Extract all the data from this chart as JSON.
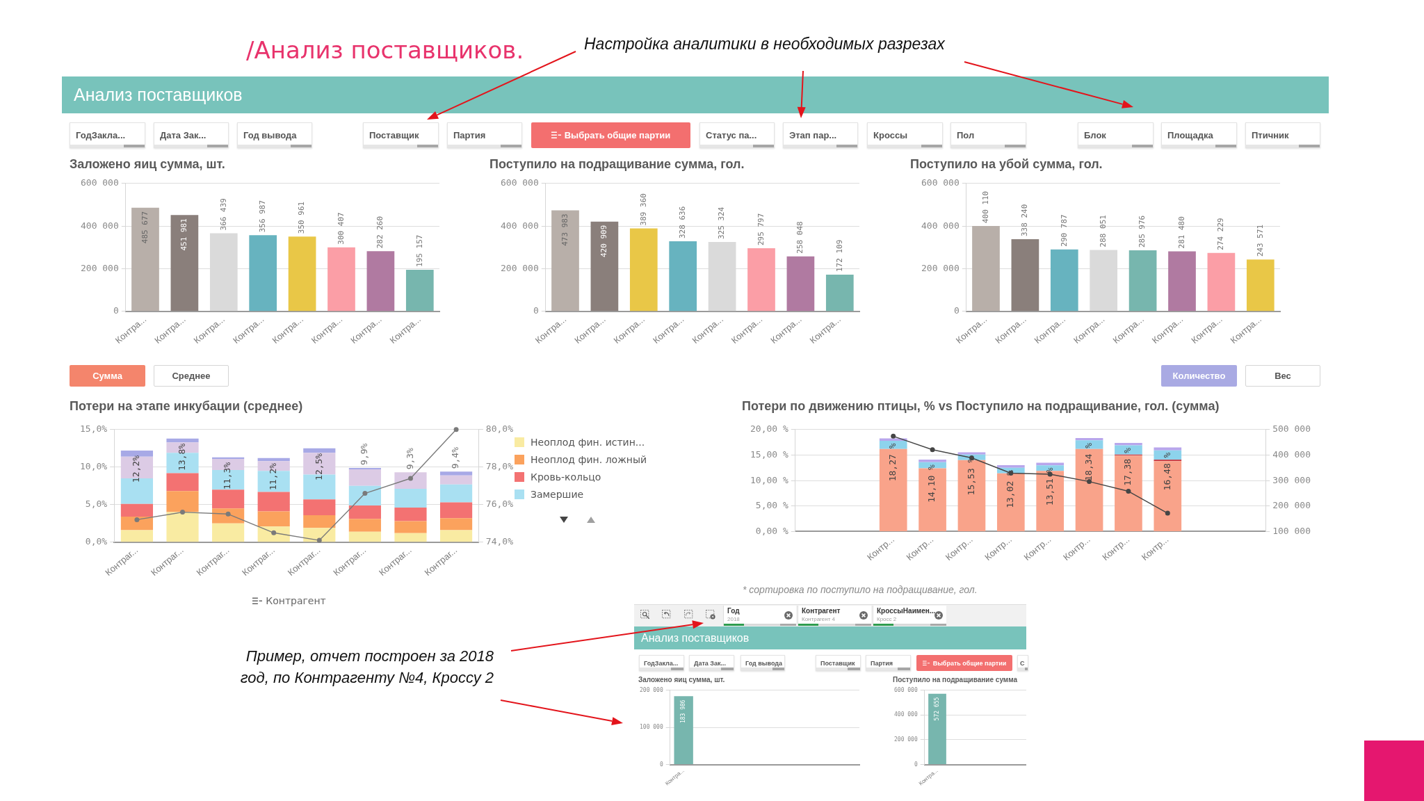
{
  "chart_data": [
    {
      "type": "other",
      "title": "/Анализ поставщиков.",
      "annotations": [
        "Настройка аналитики в необходимых разрезах"
      ]
    },
    {
      "type": "other",
      "title": "Анализ поставщиков",
      "annotations": [
        "ГодЗакла...",
        "Дата Зак...",
        "Год вывода",
        "Поставщик",
        "Партия",
        "Выбрать общие партии",
        "Статус па...",
        "Этап пар...",
        "Кроссы",
        "Пол",
        "Блок",
        "Площадка",
        "Птичник"
      ]
    },
    {
      "type": "bar",
      "title": "Заложено яиц сумма, шт.",
      "categories": [
        "Контра...",
        "Контра...",
        "Контра...",
        "Контра...",
        "Контра...",
        "Контра...",
        "Контра...",
        "Контра..."
      ],
      "values": [
        485677,
        451981,
        366439,
        356987,
        350961,
        300407,
        282260,
        195157
      ],
      "colors": [
        "#b8afa9",
        "#8a7f7b",
        "#dadada",
        "#67b3bf",
        "#e9c747",
        "#fb9ea6",
        "#b07aa1",
        "#77b6ae"
      ],
      "value_labels": [
        "485 677",
        "451 981",
        "366 439",
        "356 987",
        "350 961",
        "300 407",
        "282 260",
        "195 157"
      ],
      "ylim": [
        0,
        600000
      ],
      "yticks": [
        {
          "value": 0,
          "label": "0"
        },
        {
          "value": 200000,
          "label": "200 000"
        },
        {
          "value": 400000,
          "label": "400 000"
        },
        {
          "value": 600000,
          "label": "600 000"
        }
      ],
      "grid": "y"
    },
    {
      "type": "bar",
      "title": "Поступило на подращивание сумма, гол.",
      "categories": [
        "Контра...",
        "Контра...",
        "Контра...",
        "Контра...",
        "Контра...",
        "Контра...",
        "Контра...",
        "Контра..."
      ],
      "values": [
        473983,
        420909,
        389360,
        328636,
        325324,
        295797,
        258048,
        172109
      ],
      "colors": [
        "#b8afa9",
        "#8a7f7b",
        "#e9c747",
        "#67b3bf",
        "#dadada",
        "#fb9ea6",
        "#b07aa1",
        "#77b6ae"
      ],
      "value_labels": [
        "473 983",
        "420 909",
        "389 360",
        "328 636",
        "325 324",
        "295 797",
        "258 048",
        "172 109"
      ],
      "ylim": [
        0,
        600000
      ],
      "yticks": [
        {
          "value": 0,
          "label": "0"
        },
        {
          "value": 200000,
          "label": "200 000"
        },
        {
          "value": 400000,
          "label": "400 000"
        },
        {
          "value": 600000,
          "label": "600 000"
        }
      ],
      "grid": "y"
    },
    {
      "type": "bar",
      "title": "Поступило на убой сумма, гол.",
      "categories": [
        "Контра...",
        "Контра...",
        "Контра...",
        "Контра...",
        "Контра...",
        "Контра...",
        "Контра...",
        "Контра..."
      ],
      "values": [
        400110,
        338240,
        290787,
        288051,
        285976,
        281480,
        274229,
        243571
      ],
      "colors": [
        "#b8afa9",
        "#8a7f7b",
        "#67b3bf",
        "#dadada",
        "#77b6ae",
        "#b07aa1",
        "#fb9ea6",
        "#e9c747"
      ],
      "value_labels": [
        "400 110",
        "338 240",
        "290 787",
        "288 051",
        "285 976",
        "281 480",
        "274 229",
        "243 571"
      ],
      "ylim": [
        0,
        600000
      ],
      "yticks": [
        {
          "value": 0,
          "label": "0"
        },
        {
          "value": 200000,
          "label": "200 000"
        },
        {
          "value": 400000,
          "label": "400 000"
        },
        {
          "value": 600000,
          "label": "600 000"
        }
      ],
      "grid": "y"
    },
    {
      "type": "other",
      "annotations": [
        "Сумма",
        "Среднее",
        "Количество",
        "Вес"
      ]
    },
    {
      "type": "bar",
      "title": "Потери на этапе инкубации (среднее)",
      "xlabel": "Контрагент",
      "categories": [
        "Контраг...",
        "Контраг...",
        "Контраг...",
        "Контраг...",
        "Контраг...",
        "Контраг...",
        "Контраг...",
        "Контраг..."
      ],
      "stacked": true,
      "series": [
        {
          "name": "Неоплод фин. истин...",
          "color": "#f9eba2",
          "values": [
            1.6,
            4.0,
            2.5,
            2.1,
            1.9,
            1.4,
            1.2,
            1.6
          ]
        },
        {
          "name": "Неоплод фин. ложный",
          "color": "#fba25d",
          "values": [
            1.8,
            2.8,
            2.0,
            2.0,
            1.7,
            1.7,
            1.6,
            1.6
          ]
        },
        {
          "name": "Кровь-кольцо",
          "color": "#f37272",
          "values": [
            1.7,
            2.4,
            2.5,
            2.6,
            2.1,
            1.8,
            1.8,
            2.1
          ]
        },
        {
          "name": "Замершие",
          "color": "#a9e0f2",
          "values": [
            3.4,
            2.7,
            2.6,
            2.8,
            3.3,
            2.6,
            2.5,
            2.4
          ]
        },
        {
          "color": "#dccbe5",
          "values": [
            2.9,
            1.4,
            1.5,
            1.3,
            2.9,
            2.2,
            2.2,
            1.2
          ]
        },
        {
          "color": "#a7a9e6",
          "values": [
            0.8,
            0.5,
            0.2,
            0.4,
            0.6,
            0.2,
            null,
            0.5
          ]
        },
        {
          "type": "line",
          "axis": "y2",
          "color": "#7a7a7a",
          "marker": "circle",
          "values": [
            75.2,
            75.6,
            75.5,
            74.5,
            74.1,
            76.6,
            77.4,
            80.0
          ]
        }
      ],
      "totals": [
        "12,2%",
        "13,8%",
        "11,3%",
        "11,2%",
        "12,5%",
        "9,9%",
        "9,3%",
        "9,4%"
      ],
      "ylim": [
        0,
        15
      ],
      "yticks": [
        {
          "value": 0,
          "label": "0,0%"
        },
        {
          "value": 5,
          "label": "5,0%"
        },
        {
          "value": 10,
          "label": "10,0%"
        },
        {
          "value": 15,
          "label": "15,0%"
        }
      ],
      "y2lim": [
        74,
        80
      ],
      "y2ticks": [
        {
          "value": 74,
          "label": "74,0%"
        },
        {
          "value": 76,
          "label": "76,0%"
        },
        {
          "value": 78,
          "label": "78,0%"
        },
        {
          "value": 80,
          "label": "80,0%"
        }
      ],
      "grid": "y",
      "legend": "right"
    },
    {
      "type": "bar",
      "title": "Потери по движению птицы, % vs Поступило на подращивание, гол. (сумма)",
      "categories": [
        null,
        null,
        "Контр...",
        "Контр...",
        "Контр...",
        "Контр...",
        "Контр...",
        "Контр...",
        "Контр...",
        "Контр...",
        null,
        null
      ],
      "stacked": true,
      "series": [
        {
          "color": "#f9a38a",
          "values": [
            null,
            null,
            16.2,
            12.4,
            14.0,
            11.4,
            11.9,
            16.2,
            14.9,
            13.8,
            null,
            null
          ]
        },
        {
          "color": "#c9444c",
          "values": [
            null,
            null,
            null,
            null,
            null,
            null,
            null,
            null,
            0.2,
            0.3,
            null,
            null
          ]
        },
        {
          "color": "#8dd3ec",
          "values": [
            null,
            null,
            1.6,
            1.2,
            1.1,
            1.1,
            1.1,
            1.7,
            1.8,
            1.8,
            null,
            null
          ]
        },
        {
          "color": "#b8a6ec",
          "values": [
            null,
            null,
            0.47,
            0.5,
            0.43,
            0.52,
            0.51,
            0.44,
            0.48,
            0.58,
            null,
            null
          ]
        },
        {
          "type": "line",
          "axis": "y2",
          "color": "#454545",
          "marker": "circle",
          "values": [
            null,
            null,
            474000,
            421000,
            389000,
            329000,
            325000,
            296000,
            258000,
            172000,
            null,
            null
          ]
        }
      ],
      "totals": [
        null,
        null,
        "18,27 %",
        "14,10 %",
        "15,53 %",
        "13,02 %",
        "13,51 %",
        "18,34 %",
        "17,38 %",
        "16,48 %",
        null,
        null
      ],
      "ylim": [
        0,
        20
      ],
      "yticks": [
        {
          "value": 0,
          "label": "0,00 %"
        },
        {
          "value": 5,
          "label": "5,00 %"
        },
        {
          "value": 10,
          "label": "10,00 %"
        },
        {
          "value": 15,
          "label": "15,00 %"
        },
        {
          "value": 20,
          "label": "20,00 %"
        }
      ],
      "y2lim": [
        100000,
        500000
      ],
      "y2ticks": [
        {
          "value": 100000,
          "label": "100 000"
        },
        {
          "value": 200000,
          "label": "200 000"
        },
        {
          "value": 300000,
          "label": "300 000"
        },
        {
          "value": 400000,
          "label": "400 000"
        },
        {
          "value": 500000,
          "label": "500 000"
        }
      ],
      "grid": "y",
      "annotations": [
        "* сортировка по поступило на подращивание, гол."
      ]
    },
    {
      "type": "other",
      "annotations": [
        "Пример, отчет построен за 2018 год, по Контрагенту №4, Кроссу 2"
      ]
    },
    {
      "type": "other",
      "title": "Анализ поставщиков",
      "annotations": [
        "Год",
        "2018",
        "Контрагент",
        "Контрагент 4",
        "КроссыНаимен...",
        "Кросс 2",
        "ГодЗакла...",
        "Дата Зак...",
        "Год вывода",
        "Поставщик",
        "Партия",
        "Выбрать общие партии",
        "С"
      ]
    },
    {
      "type": "bar",
      "title": "Заложено яиц сумма, шт.",
      "categories": [
        "Контра...",
        null,
        null,
        null,
        null,
        null,
        null
      ],
      "values": [
        183986,
        null,
        null,
        null,
        null,
        null,
        null
      ],
      "color": "#77b6ae",
      "value_labels": [
        "183 986",
        null,
        null,
        null,
        null,
        null,
        null
      ],
      "ylim": [
        0,
        200000
      ],
      "yticks": [
        {
          "value": 0,
          "label": "0"
        },
        {
          "value": 100000,
          "label": "100 000"
        },
        {
          "value": 200000,
          "label": "200 000"
        }
      ],
      "grid": "y"
    },
    {
      "type": "bar",
      "title": "Поступило на подращивание сумма",
      "categories": [
        "Контра...",
        null,
        null,
        null
      ],
      "values": [
        572655,
        null,
        null,
        null
      ],
      "color": "#77b6ae",
      "value_labels": [
        "572 655",
        null,
        null,
        null
      ],
      "ylim": [
        0,
        600000
      ],
      "yticks": [
        {
          "value": 0,
          "label": "0"
        },
        {
          "value": 200000,
          "label": "200 000"
        },
        {
          "value": 400000,
          "label": "400 000"
        },
        {
          "value": 600000,
          "label": "600 000"
        }
      ],
      "grid": "y"
    }
  ]
}
